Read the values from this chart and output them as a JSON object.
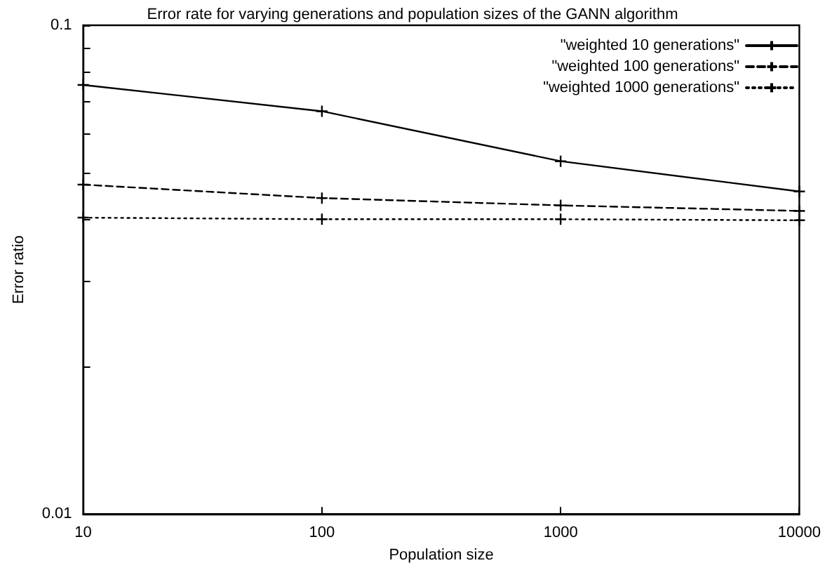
{
  "chart_data": {
    "type": "line",
    "title": "Error rate for varying generations and population sizes of the GANN algorithm",
    "xlabel": "Population size",
    "ylabel": "Error ratio",
    "x": [
      10,
      100,
      1000,
      10000
    ],
    "series": [
      {
        "name": "\"weighted 10 generations\"",
        "color": "#000000",
        "values": [
          0.0755,
          0.0667,
          0.0527,
          0.0457
        ],
        "marker": "cross",
        "line_style": "solid"
      },
      {
        "name": "\"weighted 100 generations\"",
        "color": "#000000",
        "values": [
          0.0472,
          0.0443,
          0.0428,
          0.0417
        ],
        "marker": "cross",
        "line_style": "dashed"
      },
      {
        "name": "\"weighted 1000 generations\"",
        "color": "#000000",
        "values": [
          0.0404,
          0.0401,
          0.0401,
          0.0399
        ],
        "marker": "cross",
        "line_style": "dotted"
      }
    ],
    "log": "xy",
    "xlim": [
      10,
      10000
    ],
    "ylim": [
      0.01,
      0.1
    ],
    "xticks": [
      10,
      100,
      1000,
      10000
    ],
    "yticks": [
      0.01,
      {
        "value": 0.02,
        "label": null
      },
      {
        "value": 0.03,
        "label": null
      },
      {
        "value": 0.04,
        "label": null
      },
      {
        "value": 0.05,
        "label": null
      },
      {
        "value": 0.06,
        "label": null
      },
      {
        "value": 0.07,
        "label": null
      },
      {
        "value": 0.08,
        "label": null
      },
      {
        "value": 0.09,
        "label": null
      },
      0.1
    ],
    "grid": false,
    "legend": "top right"
  }
}
